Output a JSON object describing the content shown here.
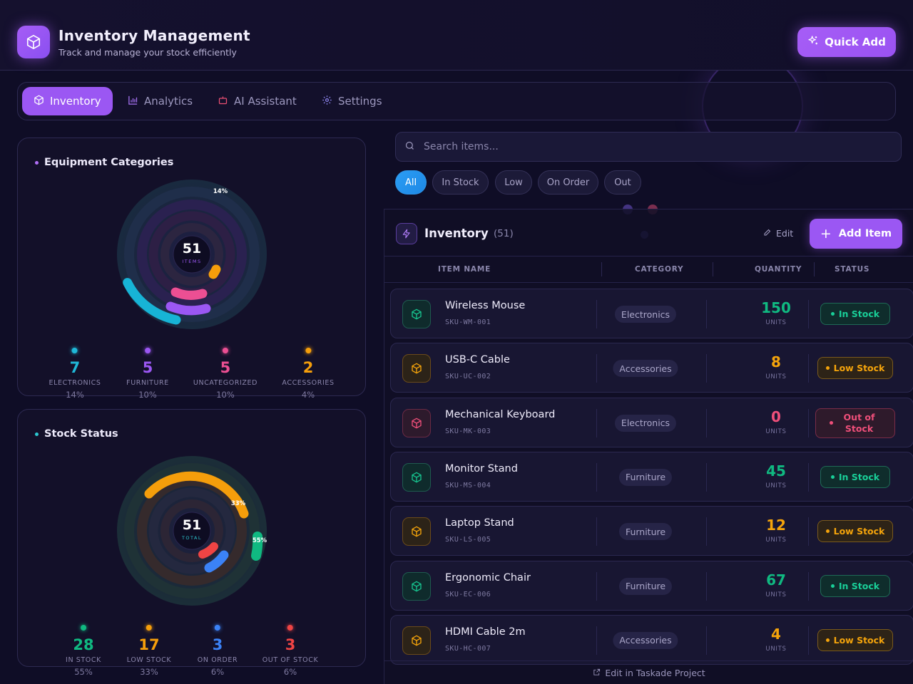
{
  "header": {
    "title": "Inventory Management",
    "subtitle": "Track and manage your stock efficiently",
    "quick_add_label": "Quick Add"
  },
  "tabs": [
    {
      "label": "Inventory",
      "icon": "cube-icon",
      "active": true
    },
    {
      "label": "Analytics",
      "icon": "bar-chart-icon",
      "active": false
    },
    {
      "label": "AI Assistant",
      "icon": "robot-icon",
      "active": false
    },
    {
      "label": "Settings",
      "icon": "gear-icon",
      "active": false
    }
  ],
  "categories_panel": {
    "title": "Equipment Categories",
    "center_value": "51",
    "center_label": "ITEMS",
    "ring_label": "14%",
    "stats": [
      {
        "value": "7",
        "label": "ELECTRONICS",
        "percent": "14%",
        "color": "#1fb8d8"
      },
      {
        "value": "5",
        "label": "FURNITURE",
        "percent": "10%",
        "color": "#9b57f3"
      },
      {
        "value": "5",
        "label": "UNCATEGORIZED",
        "percent": "10%",
        "color": "#ec4f93"
      },
      {
        "value": "2",
        "label": "ACCESSORIES",
        "percent": "4%",
        "color": "#f59e0b"
      }
    ]
  },
  "stock_panel": {
    "title": "Stock Status",
    "center_value": "51",
    "center_label": "TOTAL",
    "ring_label_low": "33%",
    "ring_label_in": "55%",
    "stats": [
      {
        "value": "28",
        "label": "IN STOCK",
        "percent": "55%",
        "color": "#10b981"
      },
      {
        "value": "17",
        "label": "LOW STOCK",
        "percent": "33%",
        "color": "#f59e0b"
      },
      {
        "value": "3",
        "label": "ON ORDER",
        "percent": "6%",
        "color": "#3b82f6"
      },
      {
        "value": "3",
        "label": "OUT OF STOCK",
        "percent": "6%",
        "color": "#ef4444"
      }
    ]
  },
  "search": {
    "placeholder": "Search items..."
  },
  "filters": [
    {
      "label": "All",
      "active": true
    },
    {
      "label": "In Stock",
      "active": false
    },
    {
      "label": "Low",
      "active": false
    },
    {
      "label": "On Order",
      "active": false
    },
    {
      "label": "Out",
      "active": false
    }
  ],
  "list": {
    "title": "Inventory",
    "count": "(51)",
    "edit_label": "Edit",
    "add_label": "Add Item",
    "columns": [
      "ITEM NAME",
      "CATEGORY",
      "QUANTITY",
      "STATUS"
    ],
    "units_label": "UNITS",
    "footer_link": "Edit in Taskade Project",
    "items": [
      {
        "name": "Wireless Mouse",
        "sku": "SKU-WM-001",
        "category": "Electronics",
        "quantity": "150",
        "status": "In Stock",
        "status_type": "in"
      },
      {
        "name": "USB-C Cable",
        "sku": "SKU-UC-002",
        "category": "Accessories",
        "quantity": "8",
        "status": "Low Stock",
        "status_type": "low"
      },
      {
        "name": "Mechanical Keyboard",
        "sku": "SKU-MK-003",
        "category": "Electronics",
        "quantity": "0",
        "status": "Out of Stock",
        "status_type": "out"
      },
      {
        "name": "Monitor Stand",
        "sku": "SKU-MS-004",
        "category": "Furniture",
        "quantity": "45",
        "status": "In Stock",
        "status_type": "in"
      },
      {
        "name": "Laptop Stand",
        "sku": "SKU-LS-005",
        "category": "Furniture",
        "quantity": "12",
        "status": "Low Stock",
        "status_type": "low"
      },
      {
        "name": "Ergonomic Chair",
        "sku": "SKU-EC-006",
        "category": "Furniture",
        "quantity": "67",
        "status": "In Stock",
        "status_type": "in"
      },
      {
        "name": "HDMI Cable 2m",
        "sku": "SKU-HC-007",
        "category": "Accessories",
        "quantity": "4",
        "status": "Low Stock",
        "status_type": "low"
      }
    ]
  }
}
